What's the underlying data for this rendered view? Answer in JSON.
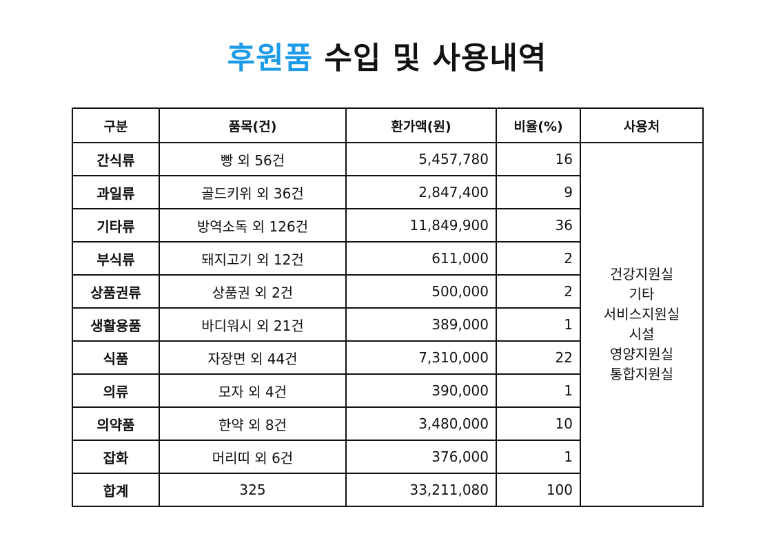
{
  "title": {
    "accent": "후원품",
    "rest": "수입 및 사용내역"
  },
  "colors": {
    "accent": "#1e9be8",
    "border": "#111111"
  },
  "table": {
    "headers": [
      "구분",
      "품목(건)",
      "환가액(원)",
      "비율(%)",
      "사용처"
    ],
    "rows": [
      {
        "category": "간식류",
        "item": "빵 외 56건",
        "amount": "5,457,780",
        "ratio": "16"
      },
      {
        "category": "과일류",
        "item": "골드키위 외 36건",
        "amount": "2,847,400",
        "ratio": "9"
      },
      {
        "category": "기타류",
        "item": "방역소독 외 126건",
        "amount": "11,849,900",
        "ratio": "36"
      },
      {
        "category": "부식류",
        "item": "돼지고기 외 12건",
        "amount": "611,000",
        "ratio": "2"
      },
      {
        "category": "상품권류",
        "item": "상품권 외 2건",
        "amount": "500,000",
        "ratio": "2"
      },
      {
        "category": "생활용품",
        "item": "바디워시 외 21건",
        "amount": "389,000",
        "ratio": "1"
      },
      {
        "category": "식품",
        "item": "자장면 외 44건",
        "amount": "7,310,000",
        "ratio": "22"
      },
      {
        "category": "의류",
        "item": "모자 외 4건",
        "amount": "390,000",
        "ratio": "1"
      },
      {
        "category": "의약품",
        "item": "한약 외 8건",
        "amount": "3,480,000",
        "ratio": "10"
      },
      {
        "category": "잡화",
        "item": "머리띠 외 6건",
        "amount": "376,000",
        "ratio": "1"
      }
    ],
    "total": {
      "category": "합계",
      "item": "325",
      "amount": "33,211,080",
      "ratio": "100"
    },
    "usage": [
      "건강지원실",
      "기타",
      "서비스지원실",
      "시설",
      "영양지원실",
      "통합지원실"
    ]
  }
}
